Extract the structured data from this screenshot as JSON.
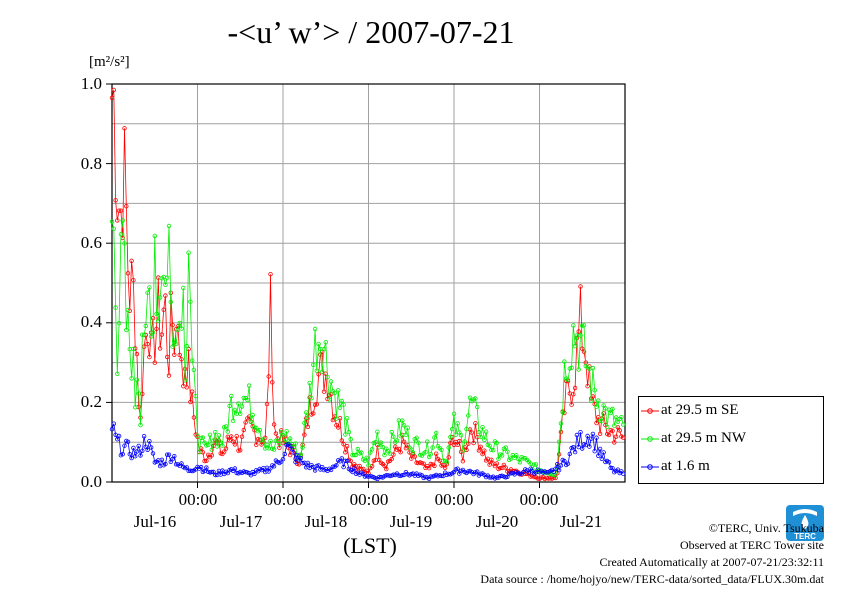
{
  "chart_data": {
    "type": "line",
    "title": "-<u’ w’> / 2007-07-21",
    "unit": "[m²/s²]",
    "xlabel": "(LST)",
    "ylim": [
      0,
      1.0
    ],
    "yticks": [
      "0.0",
      "0.2",
      "0.4",
      "0.6",
      "0.8",
      "1.0"
    ],
    "xlim_days": [
      0,
      6
    ],
    "x_time_labels": [
      "00:00",
      "00:00",
      "00:00",
      "00:00",
      "00:00"
    ],
    "x_date_labels": [
      "Jul-16",
      "Jul-17",
      "Jul-18",
      "Jul-19",
      "Jul-20",
      "Jul-21"
    ],
    "grid": true,
    "legend_position": "lower-right outside plot",
    "series": [
      {
        "name": "at 29.5 m SE",
        "color": "#ff0000",
        "keypoints": [
          [
            0.0,
            0.97
          ],
          [
            0.03,
            0.95
          ],
          [
            0.06,
            0.76
          ],
          [
            0.1,
            0.66
          ],
          [
            0.13,
            0.8
          ],
          [
            0.16,
            0.7
          ],
          [
            0.2,
            0.48
          ],
          [
            0.24,
            0.49
          ],
          [
            0.27,
            0.43
          ],
          [
            0.3,
            0.28
          ],
          [
            0.33,
            0.13
          ],
          [
            0.36,
            0.3
          ],
          [
            0.4,
            0.38
          ],
          [
            0.43,
            0.44
          ],
          [
            0.46,
            0.3
          ],
          [
            0.5,
            0.37
          ],
          [
            0.54,
            0.42
          ],
          [
            0.58,
            0.38
          ],
          [
            0.62,
            0.45
          ],
          [
            0.66,
            0.3
          ],
          [
            0.7,
            0.42
          ],
          [
            0.74,
            0.35
          ],
          [
            0.78,
            0.45
          ],
          [
            0.82,
            0.23
          ],
          [
            0.86,
            0.32
          ],
          [
            0.9,
            0.27
          ],
          [
            0.93,
            0.2
          ],
          [
            0.97,
            0.15
          ],
          [
            1.02,
            0.08
          ],
          [
            1.1,
            0.06
          ],
          [
            1.2,
            0.1
          ],
          [
            1.3,
            0.07
          ],
          [
            1.4,
            0.12
          ],
          [
            1.5,
            0.09
          ],
          [
            1.6,
            0.14
          ],
          [
            1.7,
            0.12
          ],
          [
            1.8,
            0.1
          ],
          [
            1.86,
            0.46
          ],
          [
            1.9,
            0.12
          ],
          [
            2.0,
            0.1
          ],
          [
            2.1,
            0.08
          ],
          [
            2.2,
            0.05
          ],
          [
            2.3,
            0.17
          ],
          [
            2.38,
            0.25
          ],
          [
            2.45,
            0.28
          ],
          [
            2.52,
            0.27
          ],
          [
            2.6,
            0.18
          ],
          [
            2.7,
            0.12
          ],
          [
            2.8,
            0.05
          ],
          [
            3.0,
            0.02
          ],
          [
            3.1,
            0.08
          ],
          [
            3.2,
            0.04
          ],
          [
            3.4,
            0.1
          ],
          [
            3.5,
            0.06
          ],
          [
            3.7,
            0.03
          ],
          [
            3.8,
            0.06
          ],
          [
            3.9,
            0.03
          ],
          [
            4.0,
            0.12
          ],
          [
            4.1,
            0.06
          ],
          [
            4.2,
            0.14
          ],
          [
            4.3,
            0.1
          ],
          [
            4.4,
            0.05
          ],
          [
            4.5,
            0.04
          ],
          [
            4.7,
            0.03
          ],
          [
            4.85,
            0.02
          ],
          [
            5.0,
            0.01
          ],
          [
            5.2,
            0.01
          ],
          [
            5.3,
            0.2
          ],
          [
            5.4,
            0.26
          ],
          [
            5.48,
            0.4
          ],
          [
            5.55,
            0.32
          ],
          [
            5.6,
            0.2
          ],
          [
            5.7,
            0.15
          ],
          [
            5.8,
            0.13
          ],
          [
            5.9,
            0.12
          ],
          [
            5.98,
            0.11
          ]
        ]
      },
      {
        "name": "at 29.5 m NW",
        "color": "#00ee00",
        "keypoints": [
          [
            0.0,
            0.62
          ],
          [
            0.03,
            0.7
          ],
          [
            0.06,
            0.32
          ],
          [
            0.1,
            0.5
          ],
          [
            0.13,
            0.6
          ],
          [
            0.16,
            0.4
          ],
          [
            0.2,
            0.35
          ],
          [
            0.24,
            0.32
          ],
          [
            0.27,
            0.2
          ],
          [
            0.3,
            0.33
          ],
          [
            0.33,
            0.15
          ],
          [
            0.36,
            0.46
          ],
          [
            0.4,
            0.3
          ],
          [
            0.43,
            0.5
          ],
          [
            0.46,
            0.35
          ],
          [
            0.5,
            0.63
          ],
          [
            0.54,
            0.4
          ],
          [
            0.58,
            0.6
          ],
          [
            0.62,
            0.45
          ],
          [
            0.66,
            0.68
          ],
          [
            0.7,
            0.3
          ],
          [
            0.74,
            0.5
          ],
          [
            0.78,
            0.35
          ],
          [
            0.82,
            0.55
          ],
          [
            0.86,
            0.28
          ],
          [
            0.9,
            0.68
          ],
          [
            0.93,
            0.3
          ],
          [
            0.97,
            0.2
          ],
          [
            1.02,
            0.1
          ],
          [
            1.1,
            0.08
          ],
          [
            1.2,
            0.12
          ],
          [
            1.3,
            0.1
          ],
          [
            1.4,
            0.2
          ],
          [
            1.5,
            0.22
          ],
          [
            1.6,
            0.2
          ],
          [
            1.7,
            0.16
          ],
          [
            1.8,
            0.1
          ],
          [
            1.9,
            0.08
          ],
          [
            2.0,
            0.12
          ],
          [
            2.1,
            0.1
          ],
          [
            2.2,
            0.06
          ],
          [
            2.3,
            0.2
          ],
          [
            2.38,
            0.35
          ],
          [
            2.45,
            0.38
          ],
          [
            2.52,
            0.29
          ],
          [
            2.6,
            0.22
          ],
          [
            2.7,
            0.18
          ],
          [
            2.8,
            0.08
          ],
          [
            3.0,
            0.05
          ],
          [
            3.1,
            0.12
          ],
          [
            3.2,
            0.08
          ],
          [
            3.4,
            0.14
          ],
          [
            3.5,
            0.1
          ],
          [
            3.7,
            0.08
          ],
          [
            3.8,
            0.12
          ],
          [
            3.9,
            0.05
          ],
          [
            4.0,
            0.14
          ],
          [
            4.1,
            0.1
          ],
          [
            4.2,
            0.2
          ],
          [
            4.3,
            0.14
          ],
          [
            4.4,
            0.1
          ],
          [
            4.5,
            0.08
          ],
          [
            4.7,
            0.06
          ],
          [
            4.85,
            0.05
          ],
          [
            5.0,
            0.03
          ],
          [
            5.2,
            0.02
          ],
          [
            5.3,
            0.3
          ],
          [
            5.4,
            0.38
          ],
          [
            5.48,
            0.35
          ],
          [
            5.55,
            0.3
          ],
          [
            5.6,
            0.25
          ],
          [
            5.7,
            0.2
          ],
          [
            5.8,
            0.16
          ],
          [
            5.9,
            0.15
          ],
          [
            5.98,
            0.13
          ]
        ]
      },
      {
        "name": "at 1.6 m",
        "color": "#0000ff",
        "keypoints": [
          [
            0.0,
            0.14
          ],
          [
            0.05,
            0.1
          ],
          [
            0.1,
            0.09
          ],
          [
            0.2,
            0.08
          ],
          [
            0.3,
            0.07
          ],
          [
            0.4,
            0.11
          ],
          [
            0.5,
            0.05
          ],
          [
            0.6,
            0.05
          ],
          [
            0.7,
            0.07
          ],
          [
            0.8,
            0.04
          ],
          [
            0.9,
            0.03
          ],
          [
            1.0,
            0.04
          ],
          [
            1.2,
            0.02
          ],
          [
            1.4,
            0.03
          ],
          [
            1.6,
            0.02
          ],
          [
            1.8,
            0.03
          ],
          [
            1.95,
            0.05
          ],
          [
            2.05,
            0.09
          ],
          [
            2.15,
            0.06
          ],
          [
            2.3,
            0.04
          ],
          [
            2.5,
            0.03
          ],
          [
            2.7,
            0.05
          ],
          [
            2.9,
            0.02
          ],
          [
            3.1,
            0.01
          ],
          [
            3.3,
            0.02
          ],
          [
            3.5,
            0.02
          ],
          [
            3.7,
            0.01
          ],
          [
            3.9,
            0.02
          ],
          [
            4.1,
            0.03
          ],
          [
            4.3,
            0.02
          ],
          [
            4.5,
            0.01
          ],
          [
            4.7,
            0.02
          ],
          [
            4.9,
            0.03
          ],
          [
            5.1,
            0.02
          ],
          [
            5.3,
            0.05
          ],
          [
            5.45,
            0.1
          ],
          [
            5.6,
            0.12
          ],
          [
            5.75,
            0.06
          ],
          [
            5.85,
            0.03
          ],
          [
            5.98,
            0.02
          ]
        ]
      }
    ]
  },
  "footer": {
    "copyright": "©TERC, Univ. Tsukuba",
    "observed": "Observed at TERC Tower site",
    "created": "Created Automatically at 2007-07-21/23:32:11",
    "source": "Data source : /home/hojyo/new/TERC-data/sorted_data/FLUX.30m.dat"
  },
  "logo": {
    "text": "TERC",
    "color": "#1f8fd6"
  }
}
